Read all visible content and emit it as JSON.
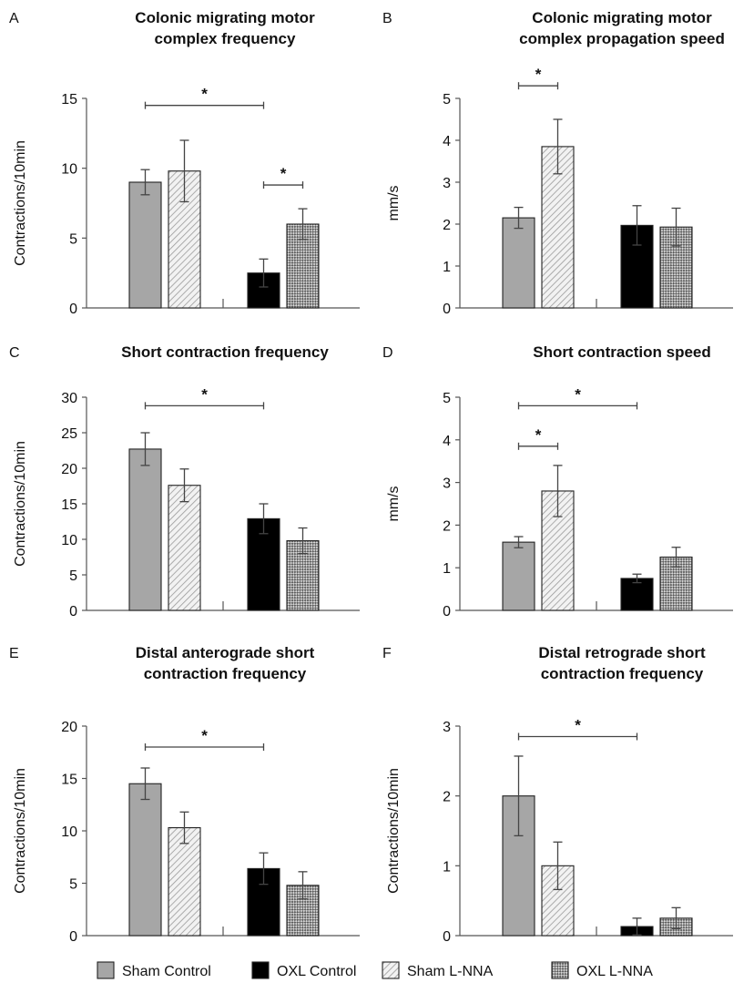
{
  "legend": {
    "items": [
      {
        "label": "Sham Control",
        "pattern": "gray"
      },
      {
        "label": "OXL Control",
        "pattern": "black"
      },
      {
        "label": "Sham L-NNA",
        "pattern": "hatch"
      },
      {
        "label": "OXL L-NNA",
        "pattern": "check"
      }
    ]
  },
  "colors": {
    "sham_control": "#a6a6a6",
    "oxl_control": "#000000",
    "sham_lnna": "hatch",
    "oxl_lnna": "checker"
  },
  "chart_data": [
    {
      "panel": "A",
      "type": "bar",
      "title": [
        "Colonic migrating motor",
        "complex frequency"
      ],
      "ylabel": "Contractions/10min",
      "ylim": [
        0,
        15
      ],
      "yticks": [
        0,
        5,
        10,
        15
      ],
      "series": [
        {
          "name": "Sham Control",
          "value": 9.0,
          "error": 0.9
        },
        {
          "name": "Sham L-NNA",
          "value": 9.8,
          "error": 2.2
        },
        {
          "name": "OXL Control",
          "value": 2.5,
          "error": 1.0
        },
        {
          "name": "OXL L-NNA",
          "value": 6.0,
          "error": 1.1
        }
      ],
      "significance": [
        {
          "from": 0,
          "to": 2,
          "level": 14.5,
          "label": "*"
        },
        {
          "from": 2,
          "to": 3,
          "level": 8.8,
          "label": "*"
        }
      ]
    },
    {
      "panel": "B",
      "type": "bar",
      "title": [
        "Colonic migrating motor",
        "complex propagation speed"
      ],
      "ylabel": "mm/s",
      "ylim": [
        0,
        5
      ],
      "yticks": [
        0,
        1,
        2,
        3,
        4,
        5
      ],
      "series": [
        {
          "name": "Sham Control",
          "value": 2.15,
          "error": 0.25
        },
        {
          "name": "Sham L-NNA",
          "value": 3.85,
          "error": 0.65
        },
        {
          "name": "OXL Control",
          "value": 1.97,
          "error": 0.47
        },
        {
          "name": "OXL L-NNA",
          "value": 1.93,
          "error": 0.45
        }
      ],
      "significance": [
        {
          "from": 0,
          "to": 1,
          "level": 5.3,
          "label": "*"
        }
      ]
    },
    {
      "panel": "C",
      "type": "bar",
      "title": [
        "Short contraction frequency"
      ],
      "ylabel": "Contractions/10min",
      "ylim": [
        0,
        30
      ],
      "yticks": [
        0,
        5,
        10,
        15,
        20,
        25,
        30
      ],
      "series": [
        {
          "name": "Sham Control",
          "value": 22.7,
          "error": 2.3
        },
        {
          "name": "Sham L-NNA",
          "value": 17.6,
          "error": 2.3
        },
        {
          "name": "OXL Control",
          "value": 12.9,
          "error": 2.1
        },
        {
          "name": "OXL L-NNA",
          "value": 9.8,
          "error": 1.8
        }
      ],
      "significance": [
        {
          "from": 0,
          "to": 2,
          "level": 28.8,
          "label": "*"
        }
      ]
    },
    {
      "panel": "D",
      "type": "bar",
      "title": [
        "Short contraction speed"
      ],
      "ylabel": "mm/s",
      "ylim": [
        0,
        5
      ],
      "yticks": [
        0,
        1,
        2,
        3,
        4,
        5
      ],
      "series": [
        {
          "name": "Sham Control",
          "value": 1.6,
          "error": 0.13
        },
        {
          "name": "Sham L-NNA",
          "value": 2.8,
          "error": 0.6
        },
        {
          "name": "OXL Control",
          "value": 0.75,
          "error": 0.1
        },
        {
          "name": "OXL L-NNA",
          "value": 1.25,
          "error": 0.23
        }
      ],
      "significance": [
        {
          "from": 0,
          "to": 2,
          "level": 4.8,
          "label": "*"
        },
        {
          "from": 0,
          "to": 1,
          "level": 3.85,
          "label": "*"
        }
      ]
    },
    {
      "panel": "E",
      "type": "bar",
      "title": [
        "Distal anterograde short",
        "contraction frequency"
      ],
      "ylabel": "Contractions/10min",
      "ylim": [
        0,
        20
      ],
      "yticks": [
        0,
        5,
        10,
        15,
        20
      ],
      "series": [
        {
          "name": "Sham Control",
          "value": 14.5,
          "error": 1.5
        },
        {
          "name": "Sham L-NNA",
          "value": 10.3,
          "error": 1.5
        },
        {
          "name": "OXL Control",
          "value": 6.4,
          "error": 1.5
        },
        {
          "name": "OXL L-NNA",
          "value": 4.8,
          "error": 1.3
        }
      ],
      "significance": [
        {
          "from": 0,
          "to": 2,
          "level": 18.0,
          "label": "*"
        }
      ]
    },
    {
      "panel": "F",
      "type": "bar",
      "title": [
        "Distal retrograde short",
        "contraction frequency"
      ],
      "ylabel": "Contractions/10min",
      "ylim": [
        0,
        3
      ],
      "yticks": [
        0,
        1,
        2,
        3
      ],
      "series": [
        {
          "name": "Sham Control",
          "value": 2.0,
          "error": 0.57
        },
        {
          "name": "Sham L-NNA",
          "value": 1.0,
          "error": 0.34
        },
        {
          "name": "OXL Control",
          "value": 0.13,
          "error": 0.12
        },
        {
          "name": "OXL L-NNA",
          "value": 0.25,
          "error": 0.15
        }
      ],
      "significance": [
        {
          "from": 0,
          "to": 2,
          "level": 2.85,
          "label": "*"
        }
      ]
    }
  ]
}
